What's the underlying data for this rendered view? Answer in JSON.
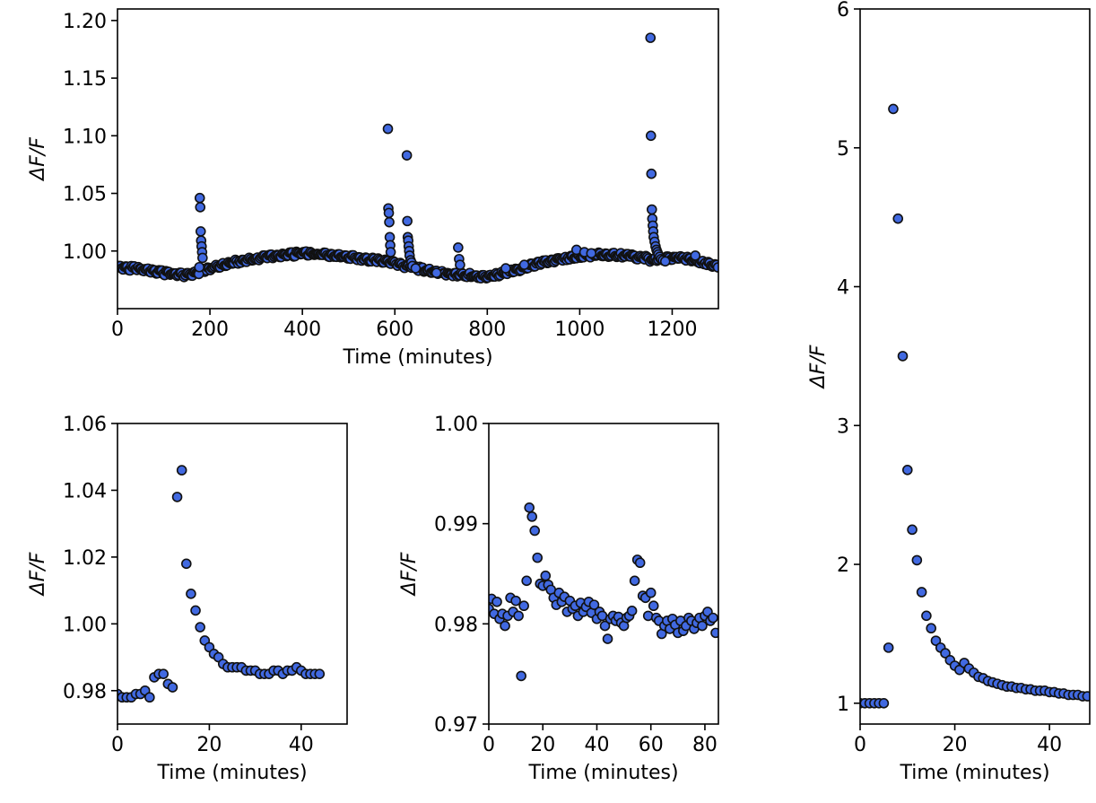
{
  "marker_fill": "#4169E1",
  "marker_edge": "#111111",
  "chart_data": [
    {
      "id": "top-left",
      "type": "scatter",
      "title": "",
      "xlabel": "Time (minutes)",
      "ylabel": "ΔF/F",
      "xlim": [
        0,
        1300
      ],
      "ylim": [
        0.95,
        1.21
      ],
      "xticks": [
        0,
        200,
        400,
        600,
        800,
        1000,
        1200
      ],
      "xtick_labels": [
        "0",
        "200",
        "400",
        "600",
        "800",
        "1000",
        "1200"
      ],
      "yticks": [
        1.0,
        1.05,
        1.1,
        1.15,
        1.2
      ],
      "ytick_labels": [
        "1.00",
        "1.05",
        "1.10",
        "1.15",
        "1.20"
      ],
      "grid": false,
      "baseline": [
        [
          0,
          0.986
        ],
        [
          60,
          0.984
        ],
        [
          100,
          0.981
        ],
        [
          150,
          0.979
        ],
        [
          200,
          0.985
        ],
        [
          260,
          0.991
        ],
        [
          330,
          0.995
        ],
        [
          400,
          0.998
        ],
        [
          450,
          0.997
        ],
        [
          520,
          0.994
        ],
        [
          580,
          0.991
        ],
        [
          600,
          0.989
        ],
        [
          660,
          0.984
        ],
        [
          700,
          0.981
        ],
        [
          760,
          0.979
        ],
        [
          800,
          0.978
        ],
        [
          850,
          0.982
        ],
        [
          900,
          0.988
        ],
        [
          960,
          0.993
        ],
        [
          1000,
          0.996
        ],
        [
          1050,
          0.997
        ],
        [
          1100,
          0.996
        ],
        [
          1140,
          0.994
        ],
        [
          1160,
          0.992
        ],
        [
          1200,
          0.994
        ],
        [
          1240,
          0.993
        ],
        [
          1270,
          0.99
        ],
        [
          1300,
          0.987
        ]
      ],
      "spikes": [
        {
          "x": [
            176,
            177,
            178,
            179,
            180,
            181,
            182,
            183,
            184
          ],
          "y": [
            0.98,
            0.986,
            1.046,
            1.038,
            1.017,
            1.009,
            1.004,
            0.999,
            0.994
          ]
        },
        {
          "x": [
            585,
            586,
            587,
            588,
            589,
            590,
            591
          ],
          "y": [
            1.106,
            1.037,
            1.033,
            1.025,
            1.012,
            1.005,
            0.999
          ]
        },
        {
          "x": [
            626,
            627,
            628,
            629,
            630,
            631,
            632,
            634,
            636,
            638
          ],
          "y": [
            1.083,
            1.026,
            1.012,
            1.009,
            1.004,
            1.0,
            0.996,
            0.992,
            0.99,
            0.987
          ]
        },
        {
          "x": [
            737,
            739,
            741
          ],
          "y": [
            1.003,
            0.993,
            0.988
          ]
        },
        {
          "x": [
            1153,
            1154,
            1155,
            1156,
            1157,
            1158,
            1159,
            1160,
            1162,
            1164,
            1166,
            1168,
            1170,
            1173,
            1176,
            1180,
            1185
          ],
          "y": [
            1.185,
            1.1,
            1.067,
            1.036,
            1.028,
            1.022,
            1.017,
            1.012,
            1.008,
            1.004,
            1.001,
            0.999,
            0.997,
            0.995,
            0.993,
            0.992,
            0.991
          ]
        },
        {
          "x": [
            645,
            690,
            840,
            880,
            993,
            1010,
            1025,
            1250
          ],
          "y": [
            0.985,
            0.981,
            0.985,
            0.988,
            1.001,
            0.999,
            0.998,
            0.996
          ]
        }
      ]
    },
    {
      "id": "bottom-left",
      "type": "scatter",
      "title": "",
      "xlabel": "Time (minutes)",
      "ylabel": "ΔF/F",
      "xlim": [
        0,
        50
      ],
      "ylim": [
        0.97,
        1.06
      ],
      "xticks": [
        0,
        20,
        40
      ],
      "xtick_labels": [
        "0",
        "20",
        "40"
      ],
      "yticks": [
        0.98,
        1.0,
        1.02,
        1.04,
        1.06
      ],
      "ytick_labels": [
        "0.98",
        "1.00",
        "1.02",
        "1.04",
        "1.06"
      ],
      "grid": false,
      "x": [
        0,
        1,
        2,
        3,
        4,
        5,
        6,
        7,
        8,
        9,
        10,
        11,
        12,
        13,
        14,
        15,
        16,
        17,
        18,
        19,
        20,
        21,
        22,
        23,
        24,
        25,
        26,
        27,
        28,
        29,
        30,
        31,
        32,
        33,
        34,
        35,
        36,
        37,
        38,
        39,
        40,
        41,
        42,
        43,
        44
      ],
      "y": [
        0.979,
        0.978,
        0.978,
        0.978,
        0.979,
        0.979,
        0.98,
        0.978,
        0.984,
        0.985,
        0.985,
        0.982,
        0.981,
        1.038,
        1.046,
        1.018,
        1.009,
        1.004,
        0.999,
        0.995,
        0.993,
        0.991,
        0.99,
        0.988,
        0.987,
        0.987,
        0.987,
        0.987,
        0.986,
        0.986,
        0.986,
        0.985,
        0.985,
        0.985,
        0.986,
        0.986,
        0.985,
        0.986,
        0.986,
        0.987,
        0.986,
        0.985,
        0.985,
        0.985,
        0.985
      ]
    },
    {
      "id": "bottom-middle",
      "type": "scatter",
      "title": "",
      "xlabel": "Time (minutes)",
      "ylabel": "ΔF/F",
      "xlim": [
        0,
        85
      ],
      "ylim": [
        0.97,
        1.0
      ],
      "xticks": [
        0,
        20,
        40,
        60,
        80
      ],
      "xtick_labels": [
        "0",
        "20",
        "40",
        "60",
        "80"
      ],
      "yticks": [
        0.97,
        0.98,
        0.99,
        1.0
      ],
      "ytick_labels": [
        "0.97",
        "0.98",
        "0.99",
        "1.00"
      ],
      "grid": false,
      "x": [
        0,
        1,
        2,
        3,
        4,
        5,
        6,
        7,
        8,
        9,
        10,
        11,
        12,
        13,
        14,
        15,
        16,
        17,
        18,
        19,
        20,
        21,
        22,
        23,
        24,
        25,
        26,
        27,
        28,
        29,
        30,
        31,
        32,
        33,
        34,
        35,
        36,
        37,
        38,
        39,
        40,
        41,
        42,
        43,
        44,
        45,
        46,
        47,
        48,
        49,
        50,
        51,
        52,
        53,
        54,
        55,
        56,
        57,
        58,
        59,
        60,
        61,
        62,
        63,
        64,
        65,
        66,
        67,
        68,
        69,
        70,
        71,
        72,
        73,
        74,
        75,
        76,
        77,
        78,
        79,
        80,
        81,
        82,
        83,
        84
      ],
      "y": [
        0.9815,
        0.9825,
        0.981,
        0.9822,
        0.9805,
        0.981,
        0.9798,
        0.9808,
        0.9826,
        0.9812,
        0.9823,
        0.9808,
        0.9748,
        0.9818,
        0.9843,
        0.9916,
        0.9907,
        0.9893,
        0.9866,
        0.984,
        0.9838,
        0.9848,
        0.9839,
        0.9834,
        0.9826,
        0.9819,
        0.9831,
        0.9822,
        0.9827,
        0.9812,
        0.9823,
        0.9815,
        0.9818,
        0.9808,
        0.9821,
        0.9812,
        0.9817,
        0.9822,
        0.9811,
        0.9819,
        0.9805,
        0.9812,
        0.9808,
        0.9798,
        0.9785,
        0.9805,
        0.9808,
        0.9803,
        0.9807,
        0.9801,
        0.9798,
        0.9806,
        0.9808,
        0.9813,
        0.9843,
        0.9864,
        0.9861,
        0.9828,
        0.9826,
        0.9808,
        0.9831,
        0.9818,
        0.9806,
        0.9803,
        0.979,
        0.9798,
        0.9803,
        0.9795,
        0.9805,
        0.9799,
        0.9791,
        0.9803,
        0.9793,
        0.9798,
        0.9806,
        0.9803,
        0.9795,
        0.9801,
        0.9806,
        0.9798,
        0.9808,
        0.9812,
        0.9803,
        0.9806,
        0.9791
      ]
    },
    {
      "id": "right",
      "type": "scatter",
      "title": "",
      "xlabel": "Time (minutes)",
      "ylabel": "ΔF/F",
      "xlim": [
        0,
        48.5
      ],
      "ylim": [
        0.85,
        6.0
      ],
      "xticks": [
        0,
        20,
        40
      ],
      "xtick_labels": [
        "0",
        "20",
        "40"
      ],
      "yticks": [
        1,
        2,
        3,
        4,
        5,
        6
      ],
      "ytick_labels": [
        "1",
        "2",
        "3",
        "4",
        "5",
        "6"
      ],
      "grid": false,
      "x": [
        0,
        1,
        2,
        3,
        4,
        5,
        6,
        7,
        8,
        9,
        10,
        11,
        12,
        13,
        14,
        15,
        16,
        17,
        18,
        19,
        20,
        21,
        22,
        23,
        24,
        25,
        26,
        27,
        28,
        29,
        30,
        31,
        32,
        33,
        34,
        35,
        36,
        37,
        38,
        39,
        40,
        41,
        42,
        43,
        44,
        45,
        46,
        47,
        48
      ],
      "y": [
        1.0,
        1.0,
        1.0,
        1.0,
        1.0,
        1.0,
        1.4,
        5.28,
        4.49,
        3.5,
        2.68,
        2.25,
        2.03,
        1.8,
        1.63,
        1.54,
        1.45,
        1.4,
        1.36,
        1.31,
        1.27,
        1.24,
        1.29,
        1.25,
        1.22,
        1.19,
        1.18,
        1.16,
        1.15,
        1.14,
        1.13,
        1.12,
        1.12,
        1.11,
        1.11,
        1.1,
        1.1,
        1.09,
        1.09,
        1.09,
        1.08,
        1.08,
        1.07,
        1.07,
        1.06,
        1.06,
        1.06,
        1.05,
        1.05
      ]
    }
  ]
}
